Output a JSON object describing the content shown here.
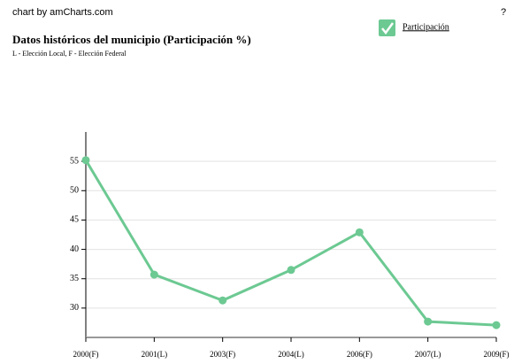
{
  "credit": "chart by amCharts.com",
  "help": "?",
  "chart_data": {
    "type": "line",
    "title": "Datos históricos del municipio (Participación %)",
    "subtitle": "L - Elección Local, F - Elección Federal",
    "categories": [
      "2000(F)",
      "2001(L)",
      "2003(F)",
      "2004(L)",
      "2006(F)",
      "2007(L)",
      "2009(F)"
    ],
    "series": [
      {
        "name": "Participación",
        "color": "#6cc992",
        "values": [
          55.2,
          35.7,
          31.3,
          36.5,
          42.9,
          27.7,
          27.1
        ]
      }
    ],
    "ylim": [
      25,
      60
    ],
    "yticks": [
      30,
      35,
      40,
      45,
      50,
      55
    ],
    "grid": true,
    "legend": "top-right"
  }
}
